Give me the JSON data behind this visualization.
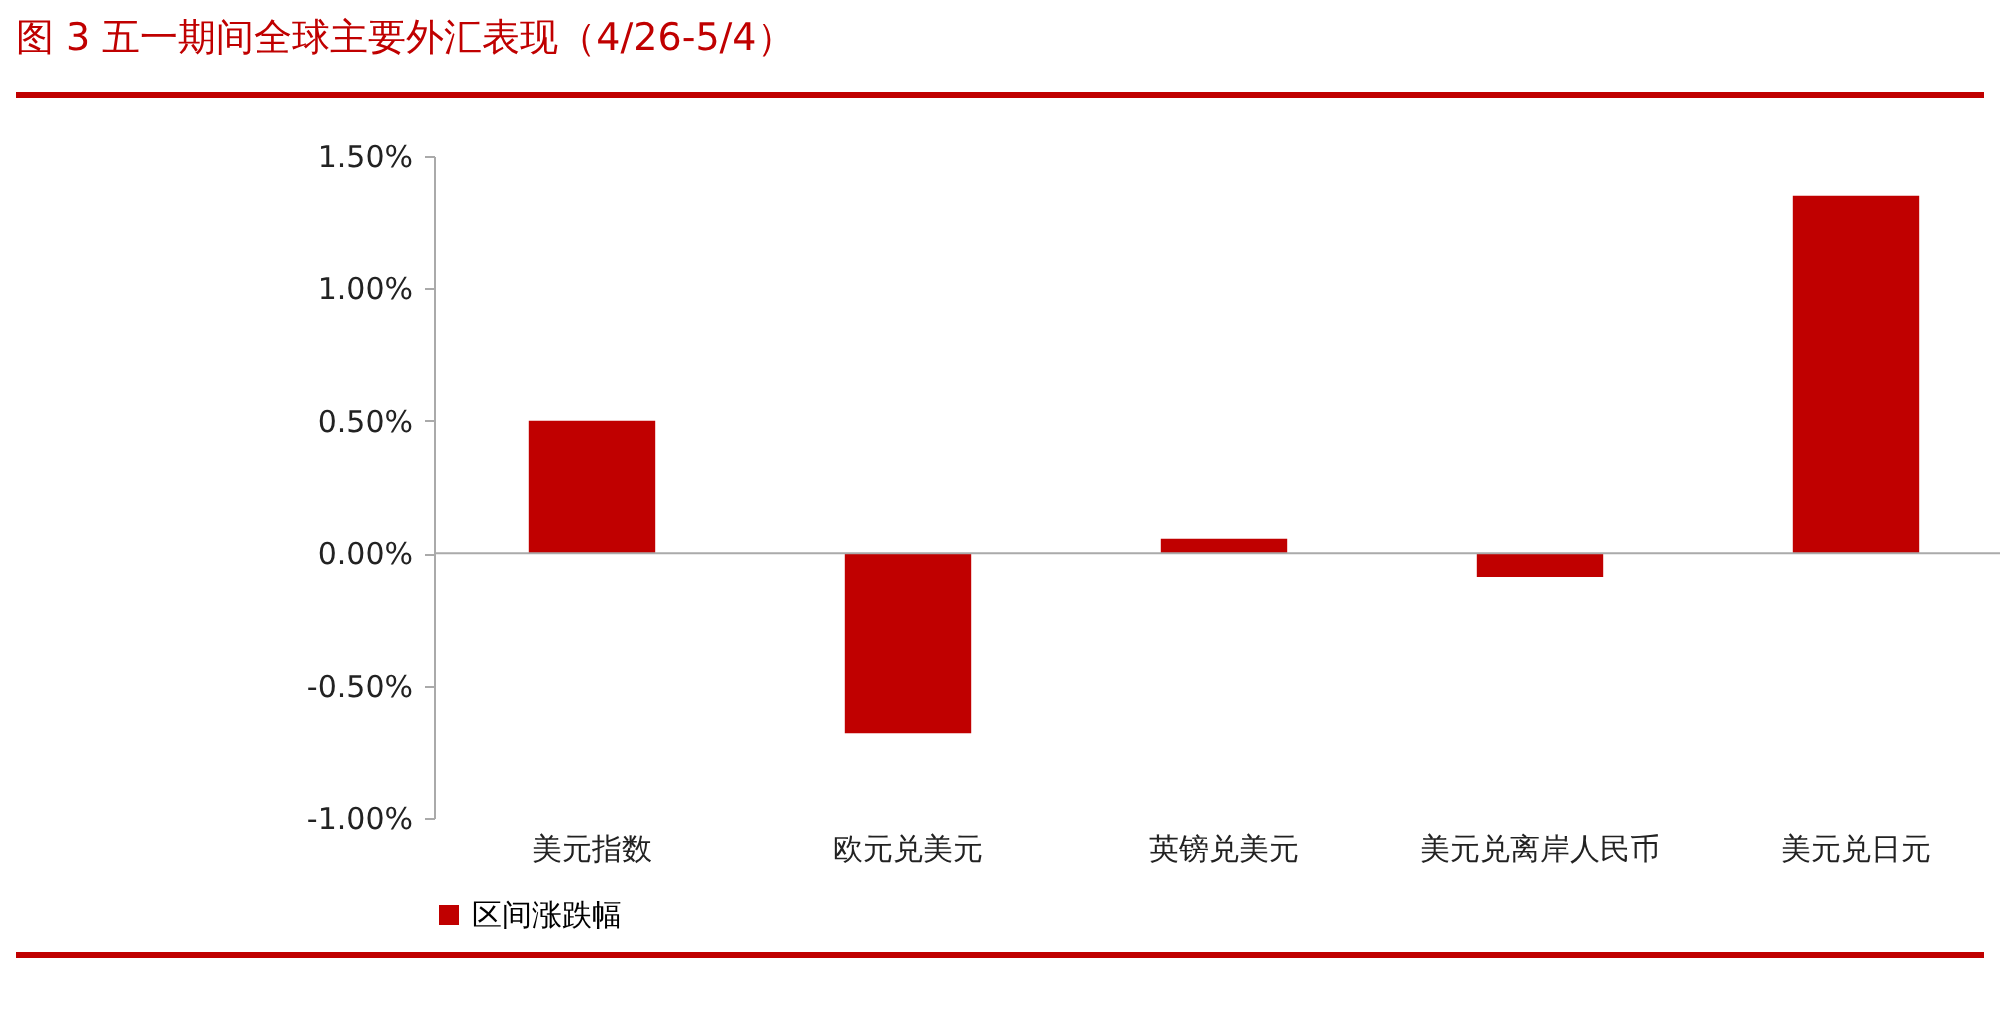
{
  "chart_data": {
    "type": "bar",
    "title": "图 3  五一期间全球主要外汇表现（4/26-5/4）",
    "categories": [
      "美元指数",
      "欧元兑美元",
      "英镑兑美元",
      "美元兑离岸人民币",
      "美元兑日元"
    ],
    "series": [
      {
        "name": "区间涨跌幅",
        "color": "#c00000",
        "values": [
          0.5,
          -0.68,
          0.055,
          -0.09,
          1.35
        ]
      }
    ],
    "ylim": [
      -1,
      1.5
    ],
    "yticks": [
      {
        "value": -1,
        "label": "-1.00%"
      },
      {
        "value": -0.5,
        "label": "-0.50%"
      },
      {
        "value": 0,
        "label": "0.00%"
      },
      {
        "value": 0.5,
        "label": "0.50%"
      },
      {
        "value": 1,
        "label": "1.00%"
      },
      {
        "value": 1.5,
        "label": "1.50%"
      }
    ],
    "ref_lines": [
      {
        "axis": "y",
        "value": 0,
        "color": "#aaaaaa"
      }
    ],
    "grid": false,
    "legend": "bottom"
  }
}
